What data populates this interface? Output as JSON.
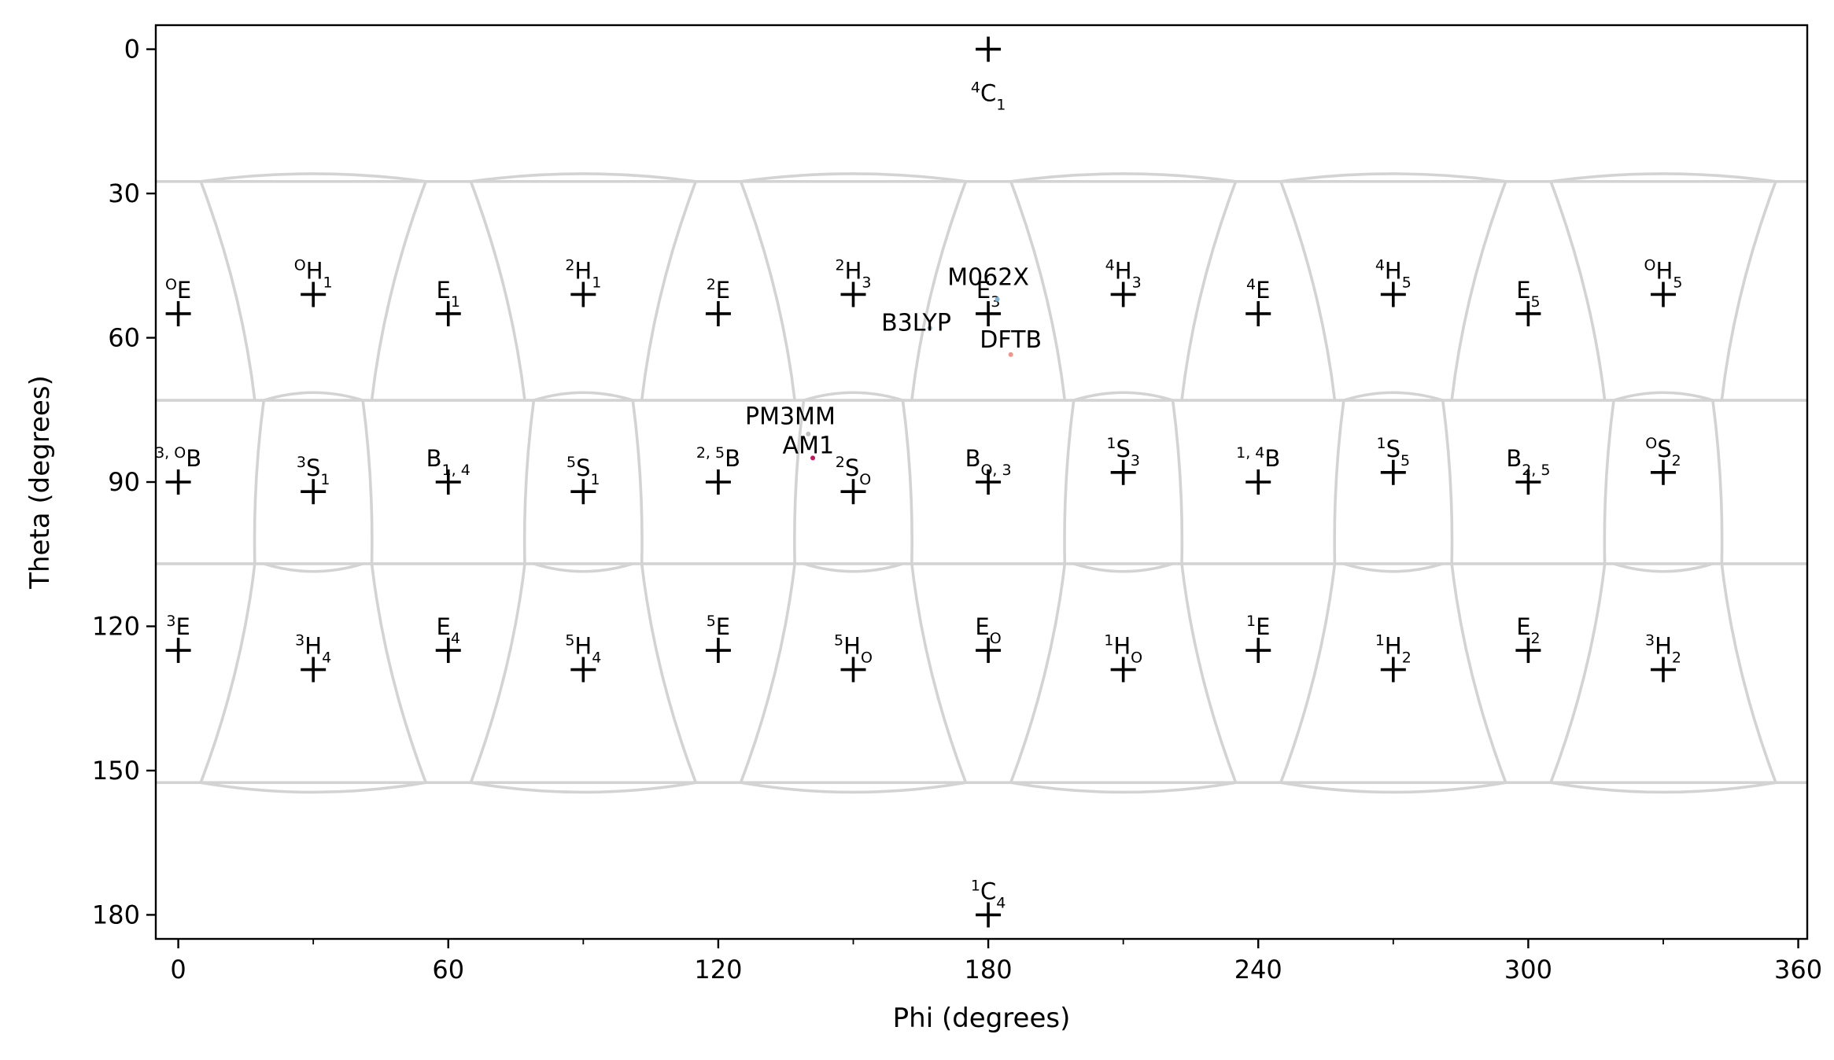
{
  "chart_data": {
    "type": "scatter",
    "xlabel": "Phi (degrees)",
    "ylabel": "Theta (degrees)",
    "xlim": [
      -5,
      362
    ],
    "ylim": [
      -5,
      185
    ],
    "y_inverted": true,
    "grid": false,
    "xticks": [
      0,
      60,
      120,
      180,
      240,
      300,
      360
    ],
    "yticks": [
      0,
      30,
      60,
      90,
      120,
      150,
      180
    ],
    "xminor": [
      30,
      90,
      150,
      210,
      270,
      330
    ],
    "cell_border_color": "#d3d3d3",
    "conformers": [
      {
        "phi": 180,
        "theta": 0,
        "label": [
          {
            "t": "4",
            "s": "sup"
          },
          {
            "t": "C"
          },
          {
            "t": "1",
            "s": "sub"
          }
        ],
        "pos": "below"
      },
      {
        "phi": 0,
        "theta": 55,
        "label": [
          {
            "t": "O",
            "s": "sup"
          },
          {
            "t": "E"
          }
        ]
      },
      {
        "phi": 30,
        "theta": 51,
        "label": [
          {
            "t": "O",
            "s": "sup"
          },
          {
            "t": "H"
          },
          {
            "t": "1",
            "s": "sub"
          }
        ]
      },
      {
        "phi": 60,
        "theta": 55,
        "label": [
          {
            "t": "E"
          },
          {
            "t": "1",
            "s": "sub"
          }
        ]
      },
      {
        "phi": 90,
        "theta": 51,
        "label": [
          {
            "t": "2",
            "s": "sup"
          },
          {
            "t": "H"
          },
          {
            "t": "1",
            "s": "sub"
          }
        ]
      },
      {
        "phi": 120,
        "theta": 55,
        "label": [
          {
            "t": "2",
            "s": "sup"
          },
          {
            "t": "E"
          }
        ]
      },
      {
        "phi": 150,
        "theta": 51,
        "label": [
          {
            "t": "2",
            "s": "sup"
          },
          {
            "t": "H"
          },
          {
            "t": "3",
            "s": "sub"
          }
        ]
      },
      {
        "phi": 180,
        "theta": 55,
        "label": [
          {
            "t": "E"
          },
          {
            "t": "3",
            "s": "sub"
          }
        ]
      },
      {
        "phi": 210,
        "theta": 51,
        "label": [
          {
            "t": "4",
            "s": "sup"
          },
          {
            "t": "H"
          },
          {
            "t": "3",
            "s": "sub"
          }
        ]
      },
      {
        "phi": 240,
        "theta": 55,
        "label": [
          {
            "t": "4",
            "s": "sup"
          },
          {
            "t": "E"
          }
        ]
      },
      {
        "phi": 270,
        "theta": 51,
        "label": [
          {
            "t": "4",
            "s": "sup"
          },
          {
            "t": "H"
          },
          {
            "t": "5",
            "s": "sub"
          }
        ]
      },
      {
        "phi": 300,
        "theta": 55,
        "label": [
          {
            "t": "E"
          },
          {
            "t": "5",
            "s": "sub"
          }
        ]
      },
      {
        "phi": 330,
        "theta": 51,
        "label": [
          {
            "t": "O",
            "s": "sup"
          },
          {
            "t": "H"
          },
          {
            "t": "5",
            "s": "sub"
          }
        ]
      },
      {
        "phi": 0,
        "theta": 90,
        "label": [
          {
            "t": "3, O",
            "s": "sup"
          },
          {
            "t": "B"
          }
        ]
      },
      {
        "phi": 30,
        "theta": 92,
        "label": [
          {
            "t": "3",
            "s": "sup"
          },
          {
            "t": "S"
          },
          {
            "t": "1",
            "s": "sub"
          }
        ]
      },
      {
        "phi": 60,
        "theta": 90,
        "label": [
          {
            "t": "B"
          },
          {
            "t": "1, 4",
            "s": "sub"
          }
        ]
      },
      {
        "phi": 90,
        "theta": 92,
        "label": [
          {
            "t": "5",
            "s": "sup"
          },
          {
            "t": "S"
          },
          {
            "t": "1",
            "s": "sub"
          }
        ]
      },
      {
        "phi": 120,
        "theta": 90,
        "label": [
          {
            "t": "2, 5",
            "s": "sup"
          },
          {
            "t": "B"
          }
        ]
      },
      {
        "phi": 150,
        "theta": 92,
        "label": [
          {
            "t": "2",
            "s": "sup"
          },
          {
            "t": "S"
          },
          {
            "t": "O",
            "s": "sub"
          }
        ]
      },
      {
        "phi": 180,
        "theta": 90,
        "label": [
          {
            "t": "B"
          },
          {
            "t": "O, 3",
            "s": "sub"
          }
        ]
      },
      {
        "phi": 210,
        "theta": 88,
        "label": [
          {
            "t": "1",
            "s": "sup"
          },
          {
            "t": "S"
          },
          {
            "t": "3",
            "s": "sub"
          }
        ]
      },
      {
        "phi": 240,
        "theta": 90,
        "label": [
          {
            "t": "1, 4",
            "s": "sup"
          },
          {
            "t": "B"
          }
        ]
      },
      {
        "phi": 270,
        "theta": 88,
        "label": [
          {
            "t": "1",
            "s": "sup"
          },
          {
            "t": "S"
          },
          {
            "t": "5",
            "s": "sub"
          }
        ]
      },
      {
        "phi": 300,
        "theta": 90,
        "label": [
          {
            "t": "B"
          },
          {
            "t": "2, 5",
            "s": "sub"
          }
        ]
      },
      {
        "phi": 330,
        "theta": 88,
        "label": [
          {
            "t": "O",
            "s": "sup"
          },
          {
            "t": "S"
          },
          {
            "t": "2",
            "s": "sub"
          }
        ]
      },
      {
        "phi": 0,
        "theta": 125,
        "label": [
          {
            "t": "3",
            "s": "sup"
          },
          {
            "t": "E"
          }
        ]
      },
      {
        "phi": 30,
        "theta": 129,
        "label": [
          {
            "t": "3",
            "s": "sup"
          },
          {
            "t": "H"
          },
          {
            "t": "4",
            "s": "sub"
          }
        ]
      },
      {
        "phi": 60,
        "theta": 125,
        "label": [
          {
            "t": "E"
          },
          {
            "t": "4",
            "s": "sub"
          }
        ]
      },
      {
        "phi": 90,
        "theta": 129,
        "label": [
          {
            "t": "5",
            "s": "sup"
          },
          {
            "t": "H"
          },
          {
            "t": "4",
            "s": "sub"
          }
        ]
      },
      {
        "phi": 120,
        "theta": 125,
        "label": [
          {
            "t": "5",
            "s": "sup"
          },
          {
            "t": "E"
          }
        ]
      },
      {
        "phi": 150,
        "theta": 129,
        "label": [
          {
            "t": "5",
            "s": "sup"
          },
          {
            "t": "H"
          },
          {
            "t": "O",
            "s": "sub"
          }
        ]
      },
      {
        "phi": 180,
        "theta": 125,
        "label": [
          {
            "t": "E"
          },
          {
            "t": "O",
            "s": "sub"
          }
        ]
      },
      {
        "phi": 210,
        "theta": 129,
        "label": [
          {
            "t": "1",
            "s": "sup"
          },
          {
            "t": "H"
          },
          {
            "t": "O",
            "s": "sub"
          }
        ]
      },
      {
        "phi": 240,
        "theta": 125,
        "label": [
          {
            "t": "1",
            "s": "sup"
          },
          {
            "t": "E"
          }
        ]
      },
      {
        "phi": 270,
        "theta": 129,
        "label": [
          {
            "t": "1",
            "s": "sup"
          },
          {
            "t": "H"
          },
          {
            "t": "2",
            "s": "sub"
          }
        ]
      },
      {
        "phi": 300,
        "theta": 125,
        "label": [
          {
            "t": "E"
          },
          {
            "t": "2",
            "s": "sub"
          }
        ]
      },
      {
        "phi": 330,
        "theta": 129,
        "label": [
          {
            "t": "3",
            "s": "sup"
          },
          {
            "t": "H"
          },
          {
            "t": "2",
            "s": "sub"
          }
        ]
      },
      {
        "phi": 180,
        "theta": 180,
        "label": [
          {
            "t": "1",
            "s": "sup"
          },
          {
            "t": "C"
          },
          {
            "t": "4",
            "s": "sub"
          }
        ]
      }
    ],
    "methods": [
      {
        "name": "M062X",
        "phi": 182,
        "theta": 52,
        "color": "#7fb3d5",
        "label_phi": 180,
        "label_theta": 49
      },
      {
        "name": "B3LYP",
        "phi": 167,
        "theta": 58,
        "color": "#7fb3d5",
        "label_phi": 164,
        "label_theta": 58.5
      },
      {
        "name": "DFTB",
        "phi": 185,
        "theta": 63.5,
        "color": "#f1948a",
        "label_phi": 185,
        "label_theta": 62
      },
      {
        "name": "PM3MM",
        "phi": 140,
        "theta": 80,
        "color": "#c0c0c0",
        "label_phi": 136,
        "label_theta": 78
      },
      {
        "name": "AM1",
        "phi": 141,
        "theta": 85,
        "color": "#c2185b",
        "label_phi": 140,
        "label_theta": 84
      }
    ]
  }
}
